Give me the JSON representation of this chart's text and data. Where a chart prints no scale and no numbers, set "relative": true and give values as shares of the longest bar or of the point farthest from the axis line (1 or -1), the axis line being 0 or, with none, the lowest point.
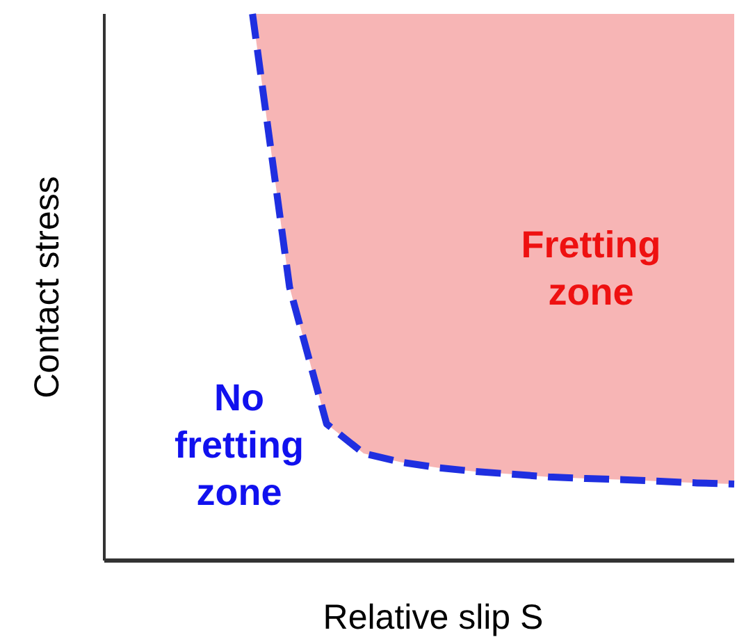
{
  "chart_data": {
    "type": "line",
    "relative": true,
    "xlabel": "Relative slip S",
    "ylabel": "Contact stress",
    "line_style": "dashed",
    "marker": "none",
    "categories": [
      null,
      null,
      null,
      null,
      null,
      null,
      null,
      null,
      null,
      null,
      null,
      null,
      null,
      null,
      null,
      null,
      null,
      null
    ],
    "series": [
      {
        "color": "#1f2fe0",
        "values": [
          null,
          null,
          null,
          null,
          1.0,
          0.5,
          0.25,
          0.196,
          0.18,
          0.17,
          0.163,
          0.158,
          0.153,
          0.15,
          0.148,
          0.145,
          0.142,
          0.14
        ],
        "lower": [
          null,
          null,
          null,
          null,
          1.0,
          0.5,
          0.25,
          0.196,
          0.18,
          0.17,
          0.163,
          0.158,
          0.153,
          0.15,
          0.148,
          0.145,
          0.142,
          0.14
        ],
        "upper": [
          null,
          null,
          null,
          null,
          1,
          1,
          1,
          1,
          1,
          1,
          1,
          1,
          1,
          1,
          1,
          1,
          1,
          1
        ]
      }
    ],
    "annotations": [
      "Fretting\nzone",
      "No\nfretting\nzone"
    ]
  }
}
